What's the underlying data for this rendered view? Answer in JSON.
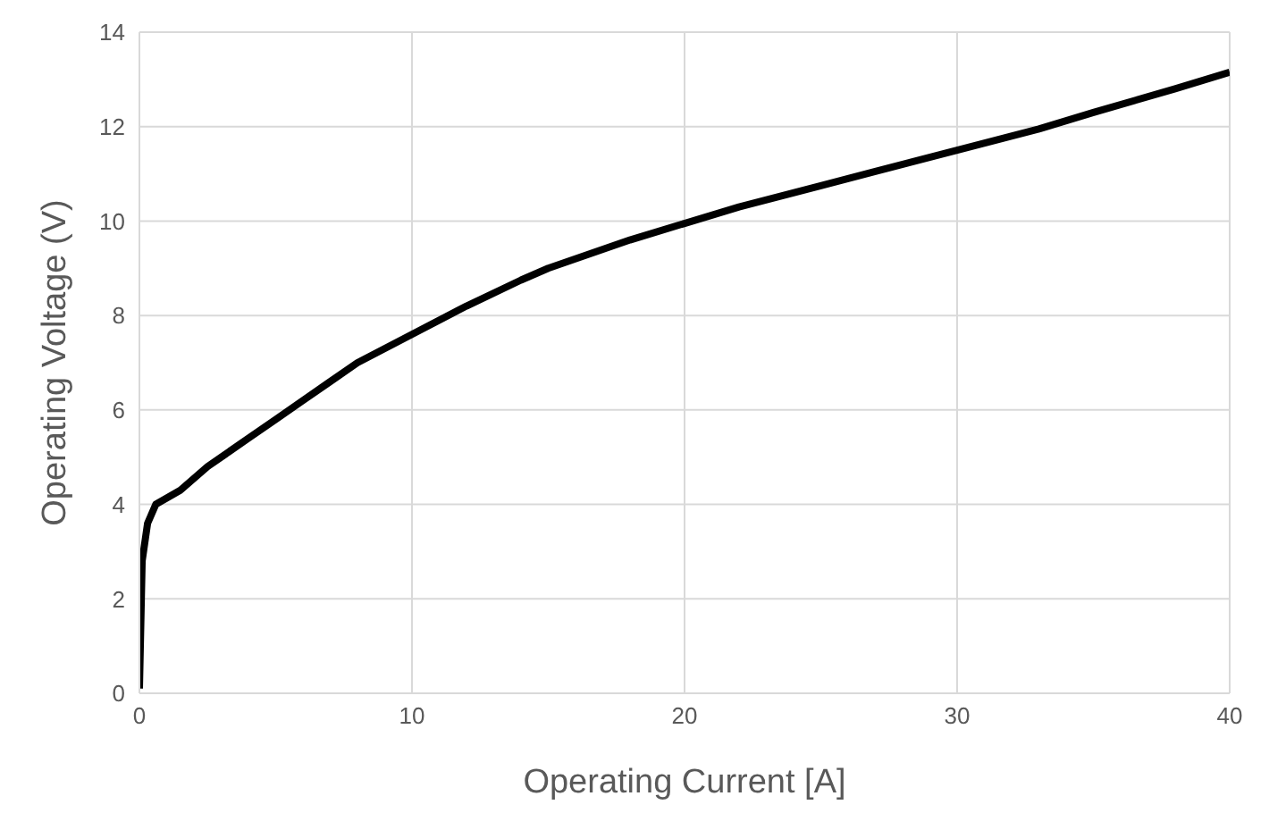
{
  "chart_data": {
    "type": "line",
    "xlabel": "Operating Current [A]",
    "ylabel": "Operating Voltage (V)",
    "series": [
      {
        "color": "#000000",
        "x": [
          0,
          0.1,
          0.3,
          0.6,
          1.5,
          2.5,
          4,
          5,
          6,
          7,
          8,
          10,
          12,
          14,
          15,
          18,
          20,
          22,
          25,
          27,
          30,
          33,
          35,
          38,
          40
        ],
        "values": [
          0.1,
          2.8,
          3.6,
          4.0,
          4.3,
          4.8,
          5.4,
          5.8,
          6.2,
          6.6,
          7.0,
          7.6,
          8.2,
          8.75,
          9.0,
          9.6,
          9.95,
          10.3,
          10.75,
          11.05,
          11.5,
          11.95,
          12.3,
          12.8,
          13.15
        ]
      }
    ],
    "xlim": [
      0,
      40
    ],
    "xticks": [
      0,
      10,
      20,
      30,
      40
    ],
    "ylim": [
      0,
      14
    ],
    "yticks": [
      0,
      2,
      4,
      6,
      8,
      10,
      12,
      14
    ],
    "grid": true,
    "marker": "none",
    "line_style": "solid",
    "legend": false
  }
}
